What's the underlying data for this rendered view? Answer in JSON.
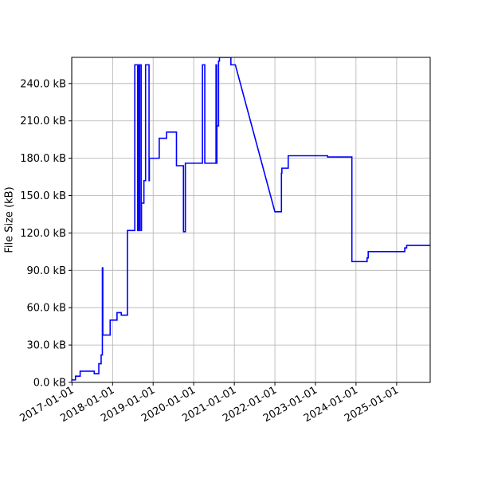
{
  "chart_data": {
    "type": "line",
    "title": "",
    "xlabel": "",
    "ylabel": "File Size (kB)",
    "grid": true,
    "line_color": "#0000ff",
    "xlim": [
      "2016-12-29",
      "2025-10-30"
    ],
    "ylim": [
      0,
      261
    ],
    "x_ticks": [
      "2017-01-01",
      "2018-01-01",
      "2019-01-01",
      "2020-01-01",
      "2021-01-01",
      "2022-01-01",
      "2023-01-01",
      "2024-01-01",
      "2025-01-01"
    ],
    "y_ticks": [
      0,
      30,
      60,
      90,
      120,
      150,
      180,
      210,
      240
    ],
    "y_tick_labels": [
      "0.0 kB",
      "30.0 kB",
      "60.0 kB",
      "90.0 kB",
      "120.0 kB",
      "150.0 kB",
      "180.0 kB",
      "210.0 kB",
      "240.0 kB"
    ],
    "series": [
      {
        "x": [
          "2017-01-01",
          "2017-02-01",
          "2017-02-01",
          "2017-03-15",
          "2017-03-15",
          "2017-07-20",
          "2017-07-20",
          "2017-08-30",
          "2017-08-30",
          "2017-09-20",
          "2017-09-20",
          "2017-10-01",
          "2017-10-01",
          "2017-10-05",
          "2017-10-05",
          "2017-12-10",
          "2017-12-10",
          "2018-02-10",
          "2018-02-10",
          "2018-03-20",
          "2018-03-20",
          "2018-05-15",
          "2018-05-15",
          "2018-07-20",
          "2018-07-20",
          "2018-08-15",
          "2018-08-15",
          "2018-08-18",
          "2018-08-18",
          "2018-08-30",
          "2018-08-30",
          "2018-09-02",
          "2018-09-02",
          "2018-09-15",
          "2018-09-15",
          "2018-09-18",
          "2018-09-18",
          "2018-10-10",
          "2018-10-10",
          "2018-10-25",
          "2018-10-25",
          "2018-11-25",
          "2018-11-25",
          "2018-11-28",
          "2018-11-28",
          "2019-02-25",
          "2019-02-25",
          "2019-04-20",
          "2019-04-20",
          "2019-04-28",
          "2019-04-28",
          "2019-05-02",
          "2019-05-02",
          "2019-07-30",
          "2019-07-30",
          "2019-10-01",
          "2019-10-01",
          "2019-10-15",
          "2019-10-15",
          "2019-10-18",
          "2019-10-18",
          "2020-03-20",
          "2020-03-20",
          "2020-04-10",
          "2020-04-10",
          "2020-07-20",
          "2020-07-20",
          "2020-07-25",
          "2020-07-25",
          "2020-07-28",
          "2020-07-28",
          "2020-08-12",
          "2020-08-12",
          "2020-08-20",
          "2020-08-20",
          "2020-09-01",
          "2020-09-01",
          "2020-12-01",
          "2020-12-01",
          "2021-01-10",
          "2022-01-01",
          "2022-03-01",
          "2022-03-01",
          "2022-03-05",
          "2022-03-05",
          "2022-04-01",
          "2022-04-01",
          "2022-05-01",
          "2022-05-01",
          "2023-04-20",
          "2023-04-20",
          "2023-11-25",
          "2023-11-25",
          "2024-04-10",
          "2024-04-10",
          "2024-04-20",
          "2024-04-20",
          "2024-06-10",
          "2024-06-10",
          "2025-03-15",
          "2025-03-15",
          "2025-04-01",
          "2025-04-01",
          "2025-10-30"
        ],
        "y": [
          2,
          2,
          5,
          5,
          9,
          9,
          7,
          7,
          15,
          15,
          22,
          22,
          92,
          92,
          38,
          38,
          50,
          50,
          56,
          56,
          54,
          54,
          122,
          122,
          255,
          255,
          122,
          122,
          255,
          255,
          122,
          122,
          255,
          255,
          122,
          122,
          144,
          144,
          162,
          162,
          255,
          255,
          162,
          162,
          180,
          180,
          196,
          196,
          196,
          196,
          196,
          196,
          201,
          201,
          174,
          174,
          121,
          121,
          121,
          121,
          176,
          176,
          255,
          255,
          176,
          176,
          255,
          255,
          176,
          176,
          206,
          206,
          258,
          258,
          261,
          261,
          261,
          261,
          255,
          255,
          137,
          137,
          168,
          168,
          172,
          172,
          172,
          172,
          182,
          182,
          181,
          181,
          97,
          97,
          100,
          100,
          105,
          105,
          105,
          105,
          108,
          108,
          110,
          110
        ]
      }
    ]
  }
}
